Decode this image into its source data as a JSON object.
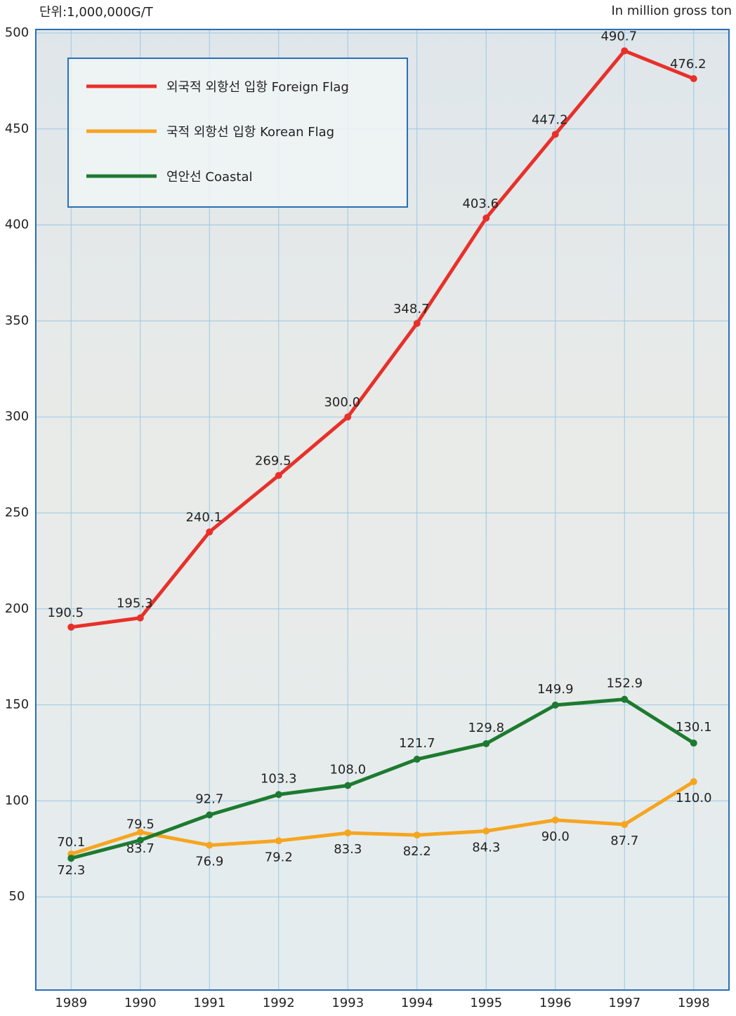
{
  "chart_data": {
    "type": "line",
    "unit_note": "단위:1,000,000G/T",
    "unit_note_en": "In million gross ton",
    "categories": [
      "1989",
      "1990",
      "1991",
      "1992",
      "1993",
      "1994",
      "1995",
      "1996",
      "1997",
      "1998"
    ],
    "series": [
      {
        "name": "외국적 외항선 입항 Foreign Flag",
        "color": "#e8302a",
        "values": [
          190.5,
          195.3,
          240.1,
          269.5,
          300.0,
          348.7,
          403.6,
          447.2,
          490.7,
          476.2
        ],
        "value_labels": [
          "190.5",
          "195.3",
          "240.1",
          "269.5",
          "300.0",
          "348.7",
          "403.6",
          "447.2",
          "490.7",
          "476.2"
        ]
      },
      {
        "name": "국적 외항선 입항 Korean Flag",
        "color": "#f6a520",
        "values": [
          72.3,
          83.7,
          76.9,
          79.2,
          83.3,
          82.2,
          84.3,
          90.0,
          87.7,
          110.0
        ],
        "value_labels": [
          "72.3",
          "83.7",
          "76.9",
          "79.2",
          "83.3",
          "82.2",
          "84.3",
          "90.0",
          "87.7",
          "110.0"
        ]
      },
      {
        "name": "연안선 Coastal",
        "color": "#1d7a30",
        "values": [
          70.1,
          79.5,
          92.7,
          103.3,
          108.0,
          121.7,
          129.8,
          149.9,
          152.9,
          130.1
        ],
        "value_labels": [
          "70.1",
          "79.5",
          "92.7",
          "103.3",
          "108.0",
          "121.7",
          "129.8",
          "149.9",
          "152.9",
          "130.1"
        ]
      }
    ],
    "ylim": [
      0,
      500
    ],
    "yticks": [
      50,
      100,
      150,
      200,
      250,
      300,
      350,
      400,
      450,
      500
    ],
    "grid": true,
    "legend": "upper left"
  }
}
